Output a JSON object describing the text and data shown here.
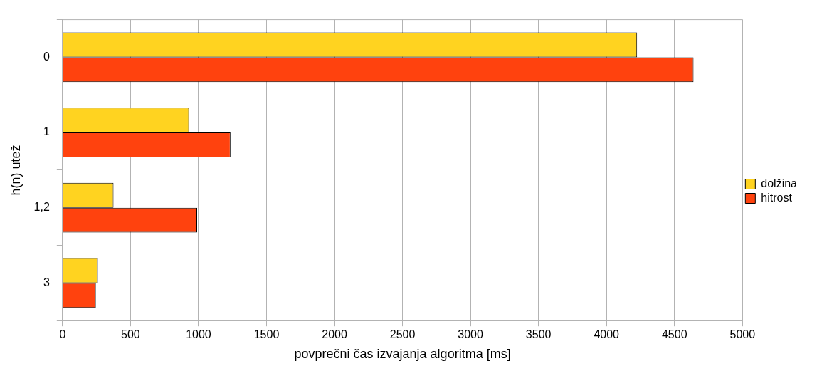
{
  "chart_data": {
    "type": "bar",
    "orientation": "horizontal",
    "xlabel": "povprečni čas izvajanja algoritma [ms]",
    "ylabel": "h(n) utež",
    "categories": [
      "0",
      "1",
      "1,2",
      "3"
    ],
    "series": [
      {
        "name": "dolžina",
        "color": "#ffd320",
        "values": [
          4225,
          930,
          375,
          260
        ]
      },
      {
        "name": "hitrost",
        "color": "#ff420e",
        "values": [
          4640,
          1235,
          990,
          245
        ]
      }
    ],
    "xlim": [
      0,
      5000
    ],
    "xticks": [
      0,
      500,
      1000,
      1500,
      2000,
      2500,
      3000,
      3500,
      4000,
      4500,
      5000
    ],
    "grid": "x",
    "legend": "right"
  }
}
